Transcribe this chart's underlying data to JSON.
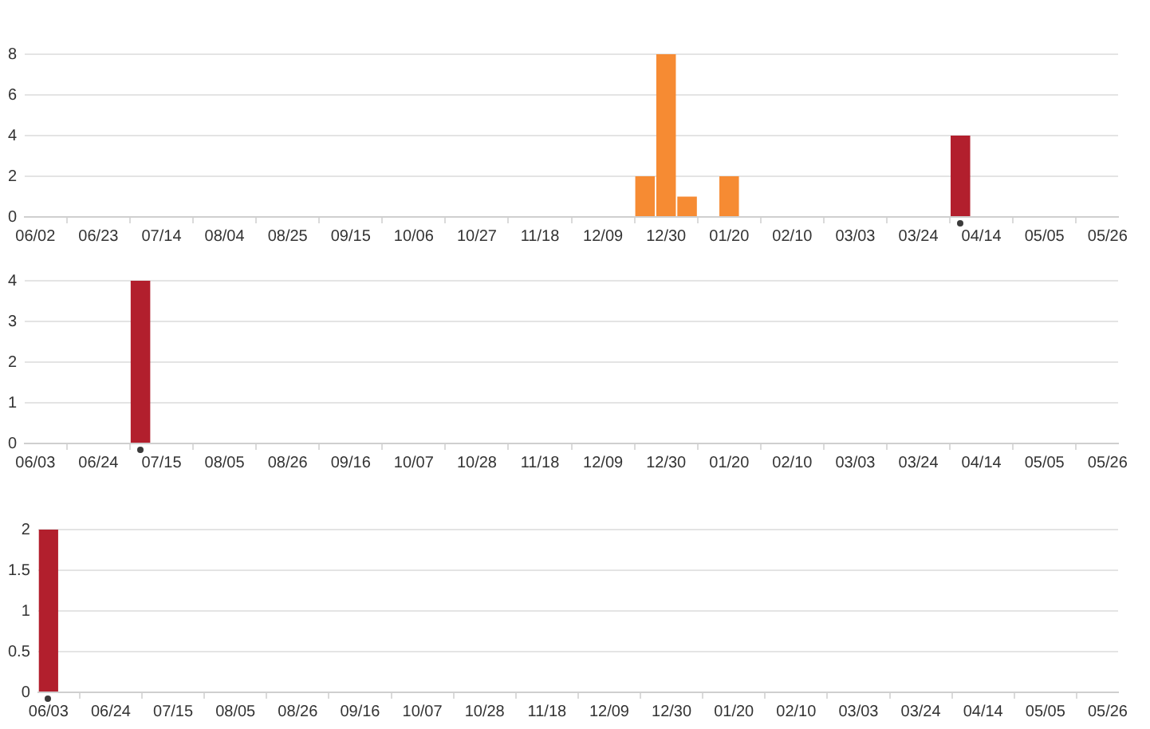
{
  "chart_data": [
    {
      "type": "bar",
      "categories": [
        "06/02",
        null,
        null,
        "06/23",
        null,
        null,
        "07/14",
        null,
        null,
        "08/04",
        null,
        null,
        "08/25",
        null,
        null,
        "09/15",
        null,
        null,
        "10/06",
        null,
        null,
        "10/27",
        null,
        null,
        "11/18",
        null,
        null,
        "12/09",
        null,
        null,
        "12/30",
        null,
        null,
        "01/20",
        null,
        null,
        "02/10",
        null,
        null,
        "03/03",
        null,
        null,
        "03/24",
        null,
        null,
        "04/14",
        null,
        null,
        "05/05",
        null,
        null,
        "05/26"
      ],
      "series": [
        {
          "color": "#f68b33",
          "values": [
            null,
            null,
            null,
            null,
            null,
            null,
            null,
            null,
            null,
            null,
            null,
            null,
            null,
            null,
            null,
            null,
            null,
            null,
            null,
            null,
            null,
            null,
            null,
            null,
            null,
            null,
            null,
            null,
            null,
            2,
            8,
            1,
            null,
            2,
            null,
            null,
            null,
            null,
            null,
            null,
            null,
            null,
            null,
            null,
            null,
            null,
            null,
            null,
            null,
            null,
            null,
            null
          ]
        },
        {
          "color": "#b21f2d",
          "values": [
            null,
            null,
            null,
            null,
            null,
            null,
            null,
            null,
            null,
            null,
            null,
            null,
            null,
            null,
            null,
            null,
            null,
            null,
            null,
            null,
            null,
            null,
            null,
            null,
            null,
            null,
            null,
            null,
            null,
            null,
            null,
            null,
            null,
            null,
            null,
            null,
            null,
            null,
            null,
            null,
            null,
            null,
            null,
            null,
            4,
            null,
            null,
            null,
            null,
            null,
            null,
            null
          ]
        }
      ],
      "ylim": [
        0,
        8
      ],
      "yticks": [
        0,
        2,
        4,
        6,
        8
      ],
      "grid": "y"
    },
    {
      "type": "bar",
      "categories": [
        "06/03",
        null,
        null,
        "06/24",
        null,
        null,
        "07/15",
        null,
        null,
        "08/05",
        null,
        null,
        "08/26",
        null,
        null,
        "09/16",
        null,
        null,
        "10/07",
        null,
        null,
        "10/28",
        null,
        null,
        "11/18",
        null,
        null,
        "12/09",
        null,
        null,
        "12/30",
        null,
        null,
        "01/20",
        null,
        null,
        "02/10",
        null,
        null,
        "03/03",
        null,
        null,
        "03/24",
        null,
        null,
        "04/14",
        null,
        null,
        "05/05",
        null,
        null,
        "05/26"
      ],
      "color": "#b21f2d",
      "values": [
        null,
        null,
        null,
        null,
        null,
        4,
        null,
        null,
        null,
        null,
        null,
        null,
        null,
        null,
        null,
        null,
        null,
        null,
        null,
        null,
        null,
        null,
        null,
        null,
        null,
        null,
        null,
        null,
        null,
        null,
        null,
        null,
        null,
        null,
        null,
        null,
        null,
        null,
        null,
        null,
        null,
        null,
        null,
        null,
        null,
        null,
        null,
        null,
        null,
        null,
        null,
        null
      ],
      "ylim": [
        0,
        4
      ],
      "yticks": [
        0,
        1,
        2,
        3,
        4
      ],
      "grid": "y"
    },
    {
      "type": "bar",
      "categories": [
        "06/03",
        null,
        null,
        "06/24",
        null,
        null,
        "07/15",
        null,
        null,
        "08/05",
        null,
        null,
        "08/26",
        null,
        null,
        "09/16",
        null,
        null,
        "10/07",
        null,
        null,
        "10/28",
        null,
        null,
        "11/18",
        null,
        null,
        "12/09",
        null,
        null,
        "12/30",
        null,
        null,
        "01/20",
        null,
        null,
        "02/10",
        null,
        null,
        "03/03",
        null,
        null,
        "03/24",
        null,
        null,
        "04/14",
        null,
        null,
        "05/05",
        null,
        null,
        "05/26"
      ],
      "color": "#b21f2d",
      "values": [
        2,
        null,
        null,
        null,
        null,
        null,
        null,
        null,
        null,
        null,
        null,
        null,
        null,
        null,
        null,
        null,
        null,
        null,
        null,
        null,
        null,
        null,
        null,
        null,
        null,
        null,
        null,
        null,
        null,
        null,
        null,
        null,
        null,
        null,
        null,
        null,
        null,
        null,
        null,
        null,
        null,
        null,
        null,
        null,
        null,
        null,
        null,
        null,
        null,
        null,
        null,
        null
      ],
      "ylim": [
        0,
        2
      ],
      "yticks": [
        0,
        0.5,
        1,
        1.5,
        2
      ],
      "grid": "y"
    }
  ]
}
